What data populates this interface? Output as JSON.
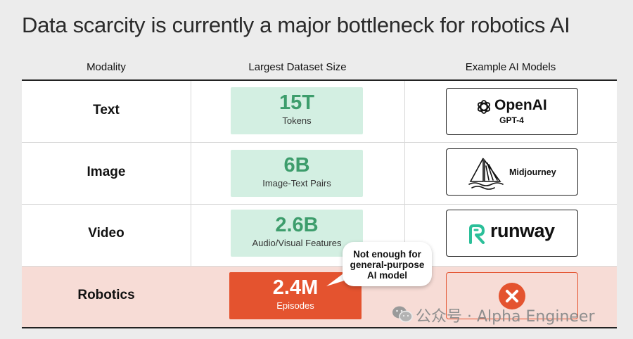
{
  "title": "Data scarcity is currently a major bottleneck for robotics AI",
  "headers": [
    "Modality",
    "Largest Dataset Size",
    "Example AI Models"
  ],
  "rows": [
    {
      "modality": "Text",
      "size": "15T",
      "unit": "Tokens",
      "model": {
        "brand": "OpenAI",
        "sub": "GPT-4",
        "icon": "openai-logo"
      }
    },
    {
      "modality": "Image",
      "size": "6B",
      "unit": "Image-Text Pairs",
      "model": {
        "brand": "Midjourney",
        "icon": "midjourney-sailboat-logo"
      }
    },
    {
      "modality": "Video",
      "size": "2.6B",
      "unit": "Audio/Visual Features",
      "model": {
        "brand": "runway",
        "icon": "runway-logo"
      }
    },
    {
      "modality": "Robotics",
      "size": "2.4M",
      "unit": "Episodes",
      "model": {
        "icon": "x-mark-icon"
      }
    }
  ],
  "callout": {
    "line1": "Not enough for",
    "line2": "general-purpose",
    "line3": "AI model"
  },
  "watermark": "公众号 · Alpha Engineer",
  "colors": {
    "green_fill": "#d3efe2",
    "green_text": "#3d9d6c",
    "accent_red": "#e4532f",
    "pink_row": "#f7dcd6"
  }
}
